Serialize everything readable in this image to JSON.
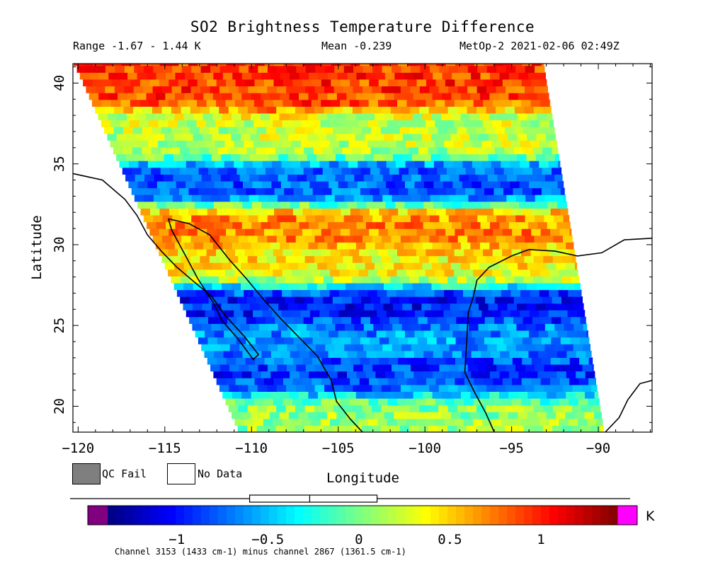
{
  "header": {
    "title": "SO2 Brightness Temperature Difference",
    "range": "Range -1.67 - 1.44 K",
    "mean": "Mean -0.239",
    "satellite_time": "MetOp-2 2021-02-06 02:49Z"
  },
  "legend": {
    "qc_fail_label": "QC Fail",
    "qc_fail_color": "#7f7f7f",
    "no_data_label": "No Data",
    "no_data_color": "#ffffff"
  },
  "chart_data": {
    "type": "heatmap",
    "title": "SO2 Brightness Temperature Difference",
    "xlabel": "Longitude",
    "ylabel": "Latitude",
    "xlim": [
      -120.3,
      -86.9
    ],
    "ylim": [
      18.4,
      41.2
    ],
    "x_ticks": [
      -120,
      -115,
      -110,
      -105,
      -100,
      -95,
      -90
    ],
    "y_ticks": [
      20,
      25,
      30,
      35,
      40
    ],
    "x_tick_labels": [
      "-120",
      "-115",
      "-110",
      "-105",
      "-100",
      "-95",
      "-90"
    ],
    "y_tick_labels": [
      "20",
      "25",
      "30",
      "35",
      "40"
    ],
    "value_range": [
      -1.67,
      1.44
    ],
    "mean": -0.239,
    "units": "K",
    "swath_corners": [
      [
        -120.3,
        41.2
      ],
      [
        -93.2,
        41.2
      ],
      [
        -89.7,
        18.4
      ],
      [
        -110.8,
        18.4
      ]
    ],
    "bands": [
      {
        "lat": 39.5,
        "value": 0.9,
        "lon_min": -112,
        "lon_max": -106
      },
      {
        "lat": 36.5,
        "value": 0.2
      },
      {
        "lat": 33.5,
        "value": -0.8
      },
      {
        "lat": 31.0,
        "value": 0.7
      },
      {
        "lat": 28.5,
        "value": 0.4
      },
      {
        "lat": 26.0,
        "value": -1.0
      },
      {
        "lat": 24.0,
        "value": -0.6
      },
      {
        "lat": 21.5,
        "value": -0.9
      },
      {
        "lat": 19.5,
        "value": 0.1
      }
    ],
    "colorbar": {
      "ticks": [
        -1,
        -0.5,
        0,
        0.5,
        1
      ],
      "tick_labels": [
        "-1",
        "-0.5",
        "0",
        "0.5",
        "1"
      ],
      "range": [
        -1.38,
        1.42
      ],
      "box_q1": -0.6,
      "box_median": -0.27,
      "box_q3": 0.1,
      "whisker_min": -1.67,
      "whisker_max": 1.44,
      "under_color": "#800080",
      "over_color": "#ff00ff",
      "unit": "K"
    }
  },
  "footnote": "Channel 3153 (1433 cm-1) minus channel 2867 (1361.5 cm-1)"
}
